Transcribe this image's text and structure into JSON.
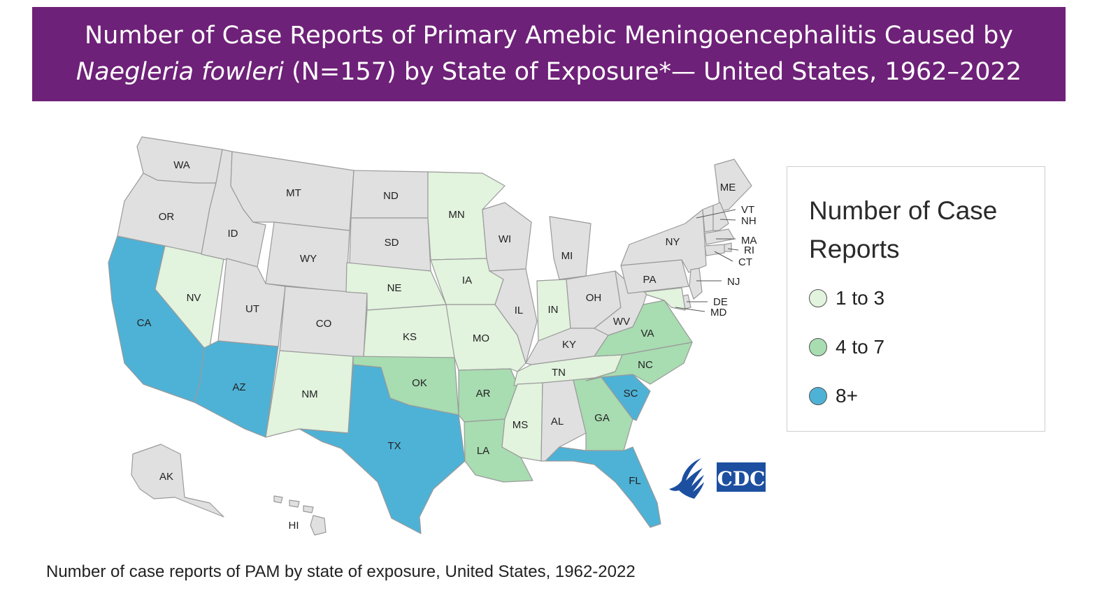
{
  "title": {
    "line1": "Number of Case Reports of Primary Amebic Meningoencephalitis Caused by",
    "organism": "Naegleria fowleri",
    "line2_rest": " (N=157) by State of Exposure*— United States, 1962–2022"
  },
  "legend": {
    "title": "Number of Case Reports",
    "items": [
      {
        "label": "1 to 3",
        "color": "#e2f3de"
      },
      {
        "label": "4 to 7",
        "color": "#a8dcb1"
      },
      {
        "label": "8+",
        "color": "#4eb2d6"
      }
    ]
  },
  "colors": {
    "banner": "#6e2178",
    "none": "#e0e0e0",
    "low": "#e2f3de",
    "mid": "#a8dcb1",
    "high": "#4eb2d6",
    "border": "#9a9a9a"
  },
  "states": [
    {
      "abbr": "WA",
      "category": "none"
    },
    {
      "abbr": "OR",
      "category": "none"
    },
    {
      "abbr": "CA",
      "category": "high"
    },
    {
      "abbr": "NV",
      "category": "low"
    },
    {
      "abbr": "ID",
      "category": "none"
    },
    {
      "abbr": "MT",
      "category": "none"
    },
    {
      "abbr": "WY",
      "category": "none"
    },
    {
      "abbr": "UT",
      "category": "none"
    },
    {
      "abbr": "AZ",
      "category": "high"
    },
    {
      "abbr": "CO",
      "category": "none"
    },
    {
      "abbr": "NM",
      "category": "low"
    },
    {
      "abbr": "ND",
      "category": "none"
    },
    {
      "abbr": "SD",
      "category": "none"
    },
    {
      "abbr": "NE",
      "category": "low"
    },
    {
      "abbr": "KS",
      "category": "low"
    },
    {
      "abbr": "OK",
      "category": "mid"
    },
    {
      "abbr": "TX",
      "category": "high"
    },
    {
      "abbr": "MN",
      "category": "low"
    },
    {
      "abbr": "IA",
      "category": "low"
    },
    {
      "abbr": "MO",
      "category": "low"
    },
    {
      "abbr": "AR",
      "category": "mid"
    },
    {
      "abbr": "LA",
      "category": "mid"
    },
    {
      "abbr": "WI",
      "category": "none"
    },
    {
      "abbr": "IL",
      "category": "none"
    },
    {
      "abbr": "MI",
      "category": "none"
    },
    {
      "abbr": "IN",
      "category": "low"
    },
    {
      "abbr": "OH",
      "category": "none"
    },
    {
      "abbr": "KY",
      "category": "none"
    },
    {
      "abbr": "TN",
      "category": "low"
    },
    {
      "abbr": "MS",
      "category": "low"
    },
    {
      "abbr": "AL",
      "category": "none"
    },
    {
      "abbr": "GA",
      "category": "mid"
    },
    {
      "abbr": "FL",
      "category": "high"
    },
    {
      "abbr": "SC",
      "category": "high"
    },
    {
      "abbr": "NC",
      "category": "mid"
    },
    {
      "abbr": "VA",
      "category": "mid"
    },
    {
      "abbr": "WV",
      "category": "none"
    },
    {
      "abbr": "PA",
      "category": "none"
    },
    {
      "abbr": "NY",
      "category": "none"
    },
    {
      "abbr": "ME",
      "category": "none"
    },
    {
      "abbr": "VT",
      "category": "none"
    },
    {
      "abbr": "NH",
      "category": "none"
    },
    {
      "abbr": "MA",
      "category": "none"
    },
    {
      "abbr": "RI",
      "category": "none"
    },
    {
      "abbr": "CT",
      "category": "none"
    },
    {
      "abbr": "NJ",
      "category": "none"
    },
    {
      "abbr": "DE",
      "category": "none"
    },
    {
      "abbr": "MD",
      "category": "low"
    },
    {
      "abbr": "AK",
      "category": "none"
    },
    {
      "abbr": "HI",
      "category": "none"
    }
  ],
  "caption": "Number of case reports of PAM by state of exposure, United States, 1962-2022",
  "logo": {
    "text": "CDC"
  }
}
